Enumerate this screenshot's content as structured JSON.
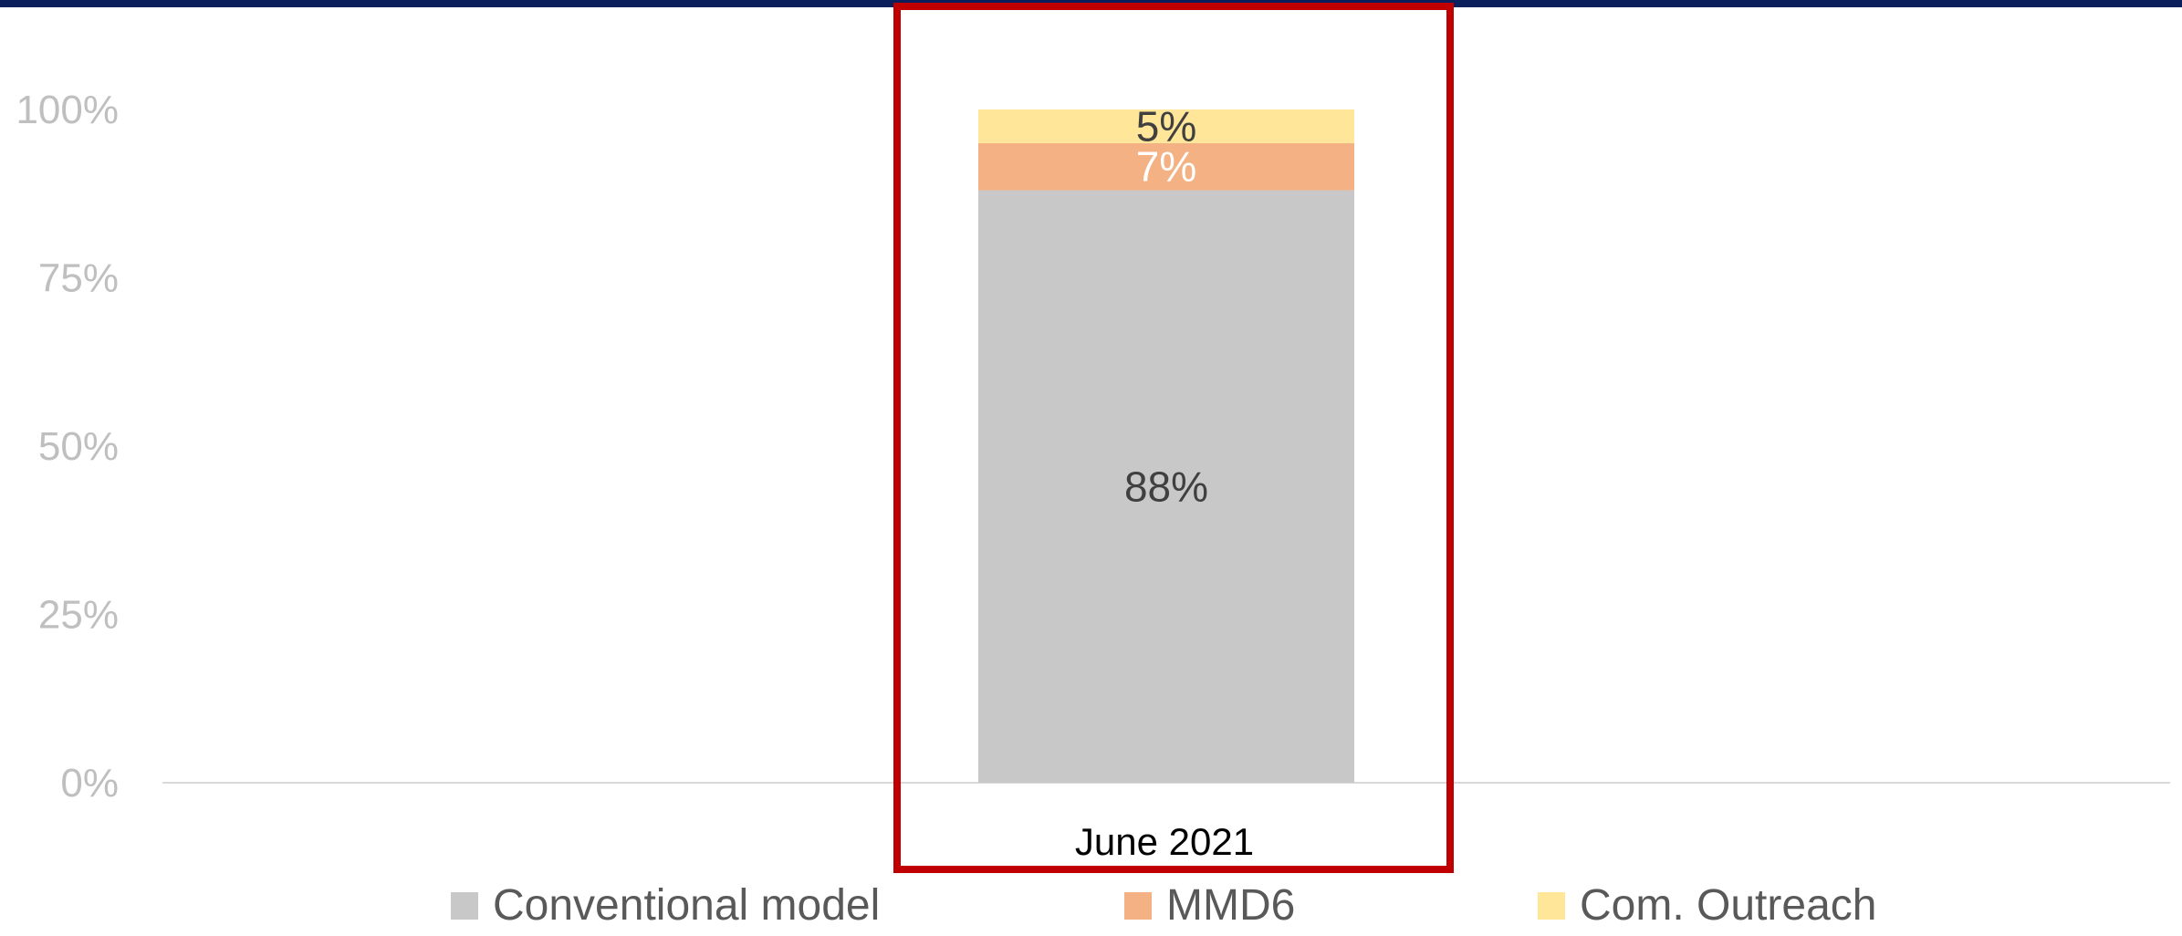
{
  "chart_data": {
    "type": "bar",
    "stacked": true,
    "categories": [
      "June 2021"
    ],
    "series": [
      {
        "name": "Conventional model",
        "values": [
          88
        ],
        "color": "#c8c8c8",
        "label_color": "#404040"
      },
      {
        "name": "MMD6",
        "values": [
          7
        ],
        "color": "#f4b183",
        "label_color": "#ffffff"
      },
      {
        "name": "Com. Outreach",
        "values": [
          5
        ],
        "color": "#ffe699",
        "label_color": "#404040"
      }
    ],
    "data_labels": [
      "88%",
      "7%",
      "5%"
    ],
    "y_ticks": [
      "0%",
      "25%",
      "50%",
      "75%",
      "100%"
    ],
    "ylim": [
      0,
      100
    ],
    "grid": false,
    "legend_position": "bottom",
    "highlight_color": "#c00000",
    "title": "",
    "xlabel": "",
    "ylabel": ""
  }
}
